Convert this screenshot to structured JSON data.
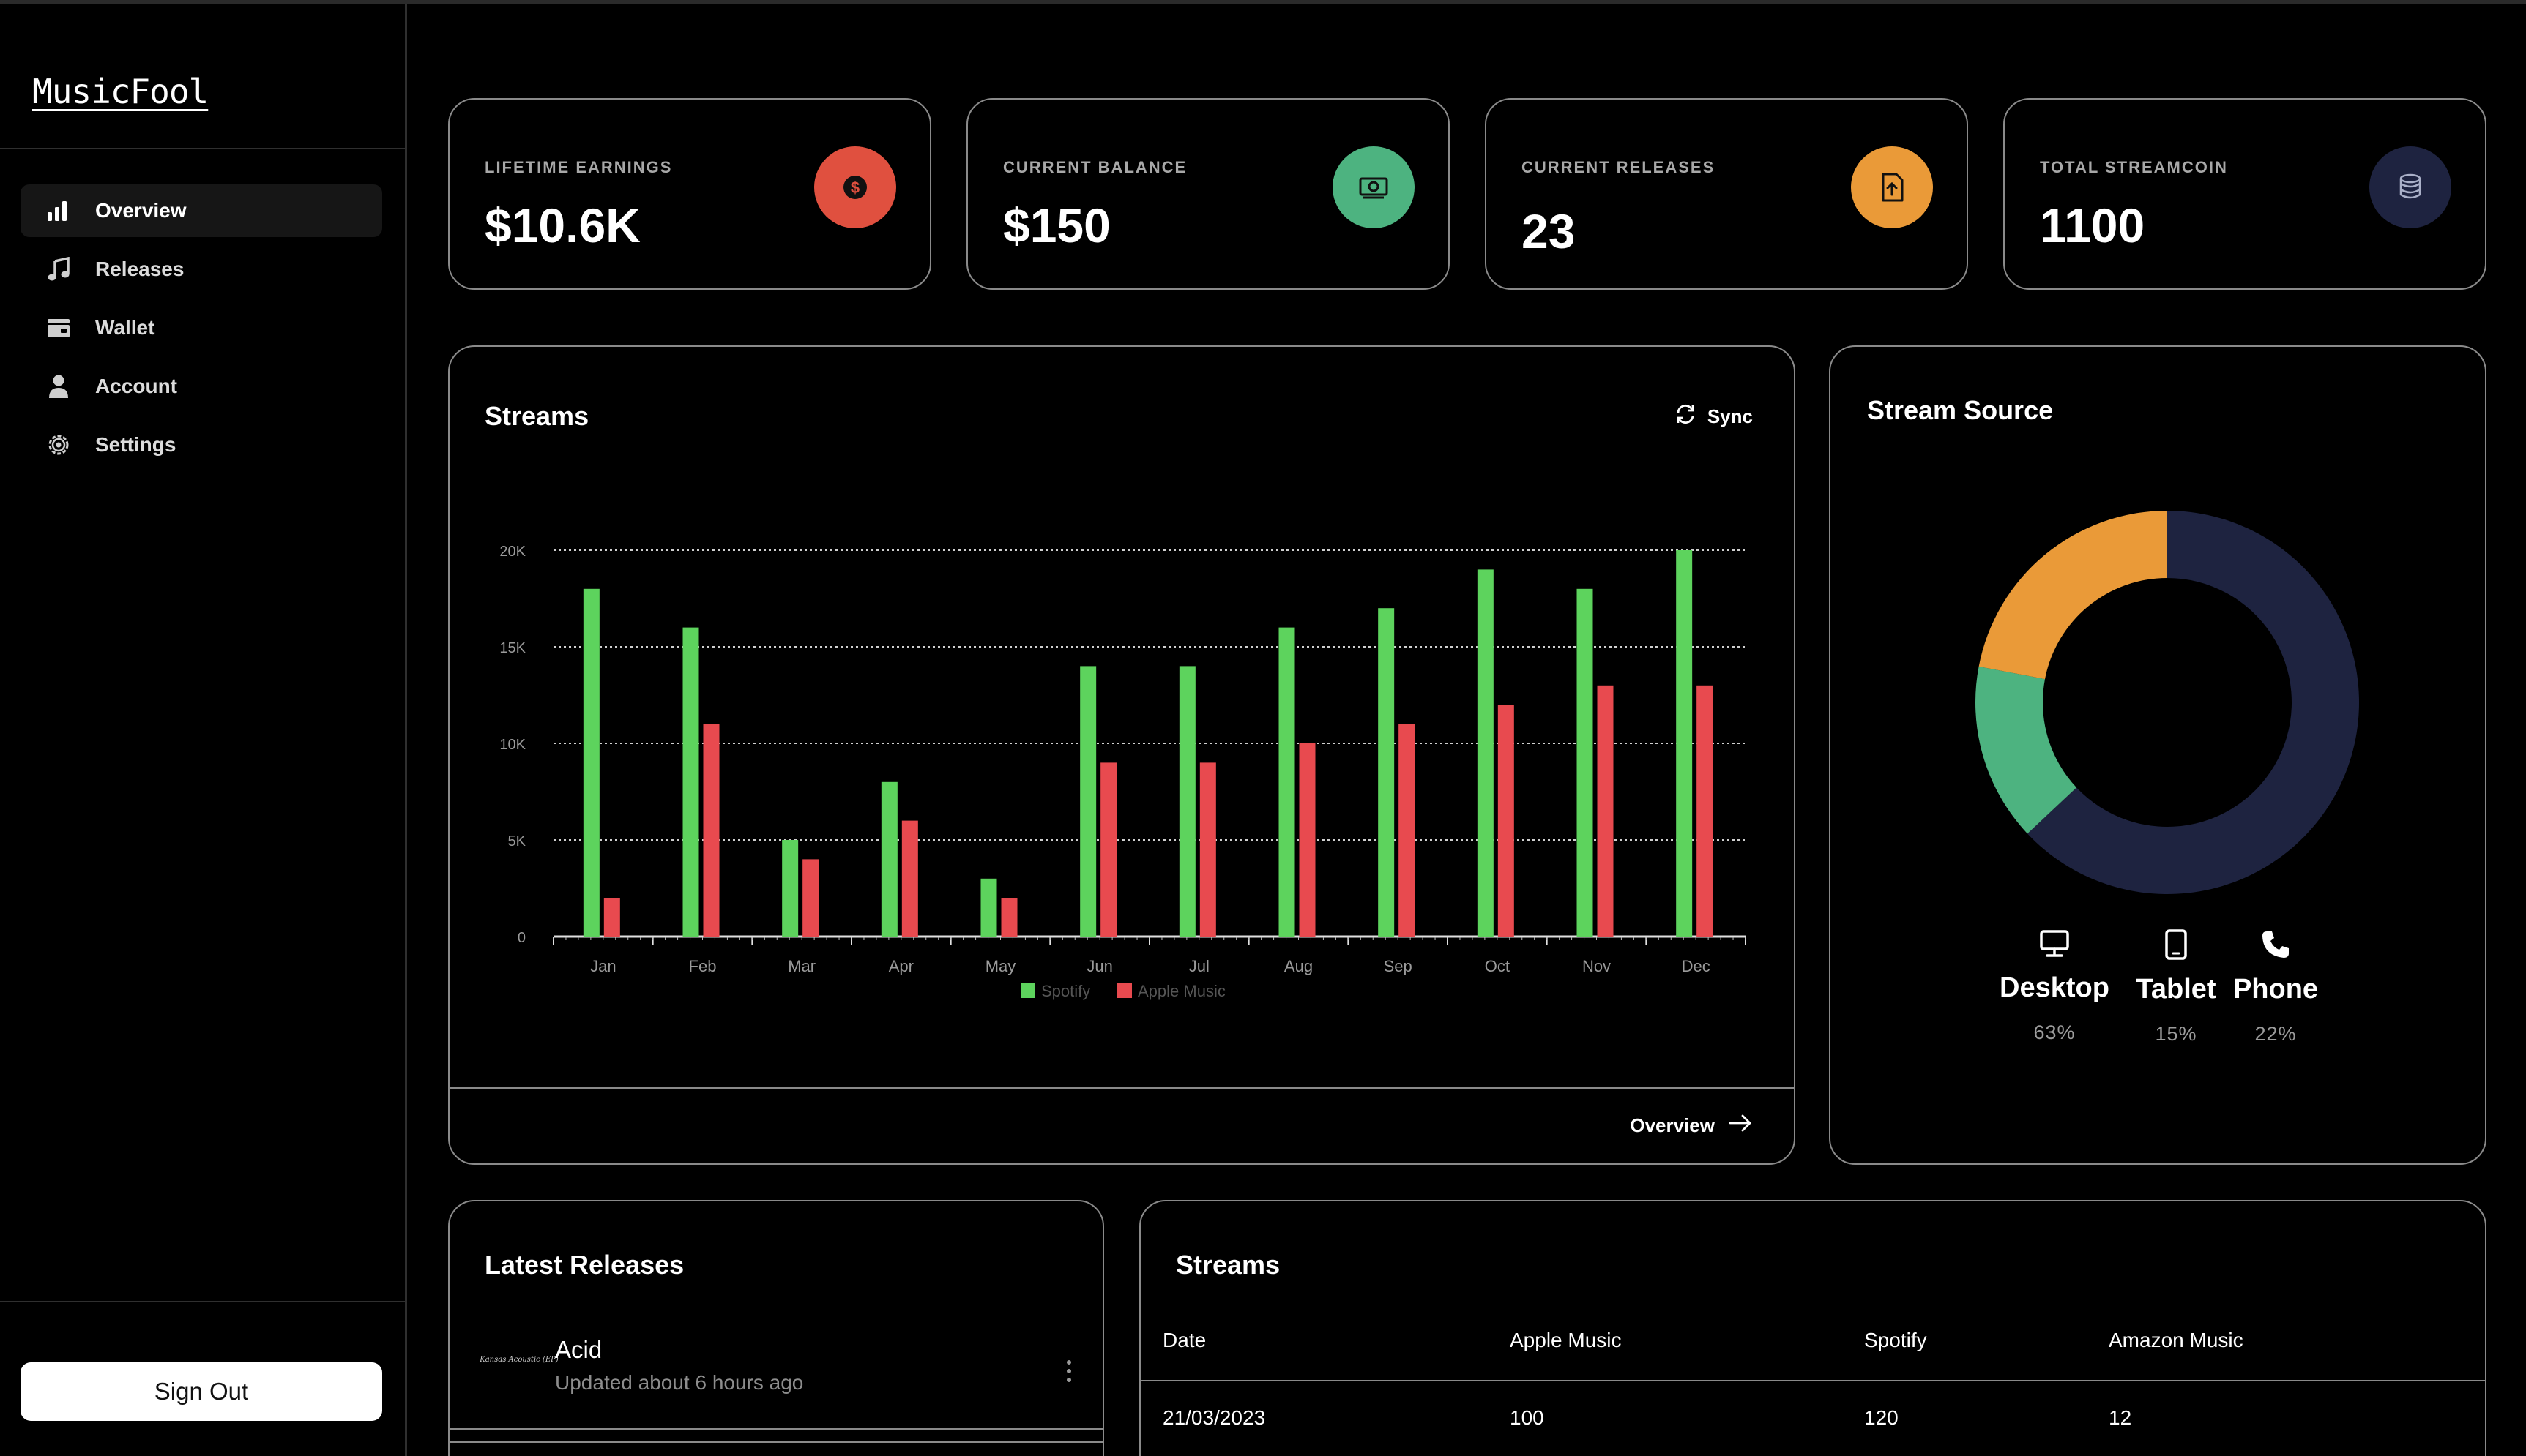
{
  "app": {
    "title": "MusicFool"
  },
  "sidebar": {
    "items": [
      {
        "label": "Overview",
        "icon": "bar-chart-icon",
        "active": true
      },
      {
        "label": "Releases",
        "icon": "music-note-icon",
        "active": false
      },
      {
        "label": "Wallet",
        "icon": "wallet-icon",
        "active": false
      },
      {
        "label": "Account",
        "icon": "user-icon",
        "active": false
      },
      {
        "label": "Settings",
        "icon": "gear-icon",
        "active": false
      }
    ],
    "sign_out": "Sign Out"
  },
  "stats": [
    {
      "label": "LIFETIME EARNINGS",
      "value": "$10.6K",
      "icon": "dollar-icon",
      "color": "#e0503f"
    },
    {
      "label": "CURRENT BALANCE",
      "value": "$150",
      "icon": "money-icon",
      "color": "#4db380"
    },
    {
      "label": "CURRENT RELEASES",
      "value": "23",
      "icon": "file-upload-icon",
      "color": "#ea9a38"
    },
    {
      "label": "TOTAL STREAMCOIN",
      "value": "1100",
      "icon": "coins-icon",
      "color": "#1e2340"
    }
  ],
  "streams_panel": {
    "title": "Streams",
    "sync_label": "Sync",
    "footer_link": "Overview"
  },
  "chart_data": {
    "type": "bar",
    "categories": [
      "Jan",
      "Feb",
      "Mar",
      "Apr",
      "May",
      "Jun",
      "Jul",
      "Aug",
      "Sep",
      "Oct",
      "Nov",
      "Dec"
    ],
    "series": [
      {
        "name": "Spotify",
        "color": "#5dd35d",
        "values": [
          18000,
          16000,
          5000,
          8000,
          3000,
          14000,
          14000,
          16000,
          17000,
          19000,
          18000,
          20000
        ]
      },
      {
        "name": "Apple Music",
        "color": "#e84a4f",
        "values": [
          2000,
          11000,
          4000,
          6000,
          2000,
          9000,
          9000,
          10000,
          11000,
          12000,
          13000,
          13000
        ]
      }
    ],
    "yticks": [
      0,
      5000,
      10000,
      15000,
      20000
    ],
    "ytick_labels": [
      "0",
      "5K",
      "10K",
      "15K",
      "20K"
    ],
    "ylim": [
      0,
      20000
    ],
    "grid": true,
    "legend": "bottom"
  },
  "stream_source": {
    "title": "Stream Source",
    "segments": [
      {
        "name": "Desktop",
        "percent_label": "63%",
        "value": 63,
        "color": "#1e2340",
        "icon": "desktop-icon"
      },
      {
        "name": "Tablet",
        "percent_label": "15%",
        "value": 15,
        "color": "#4db380",
        "icon": "tablet-icon"
      },
      {
        "name": "Phone",
        "percent_label": "22%",
        "value": 22,
        "color": "#ea9a38",
        "icon": "phone-icon"
      }
    ]
  },
  "latest_releases": {
    "title": "Latest Releases",
    "items": [
      {
        "title": "Acid",
        "updated": "Updated about 6 hours ago",
        "thumb_text": "Kansas Acoustic (EP)"
      }
    ]
  },
  "streams_table": {
    "title": "Streams",
    "columns": [
      "Date",
      "Apple Music",
      "Spotify",
      "Amazon Music"
    ],
    "rows": [
      [
        "21/03/2023",
        "100",
        "120",
        "12"
      ]
    ]
  }
}
